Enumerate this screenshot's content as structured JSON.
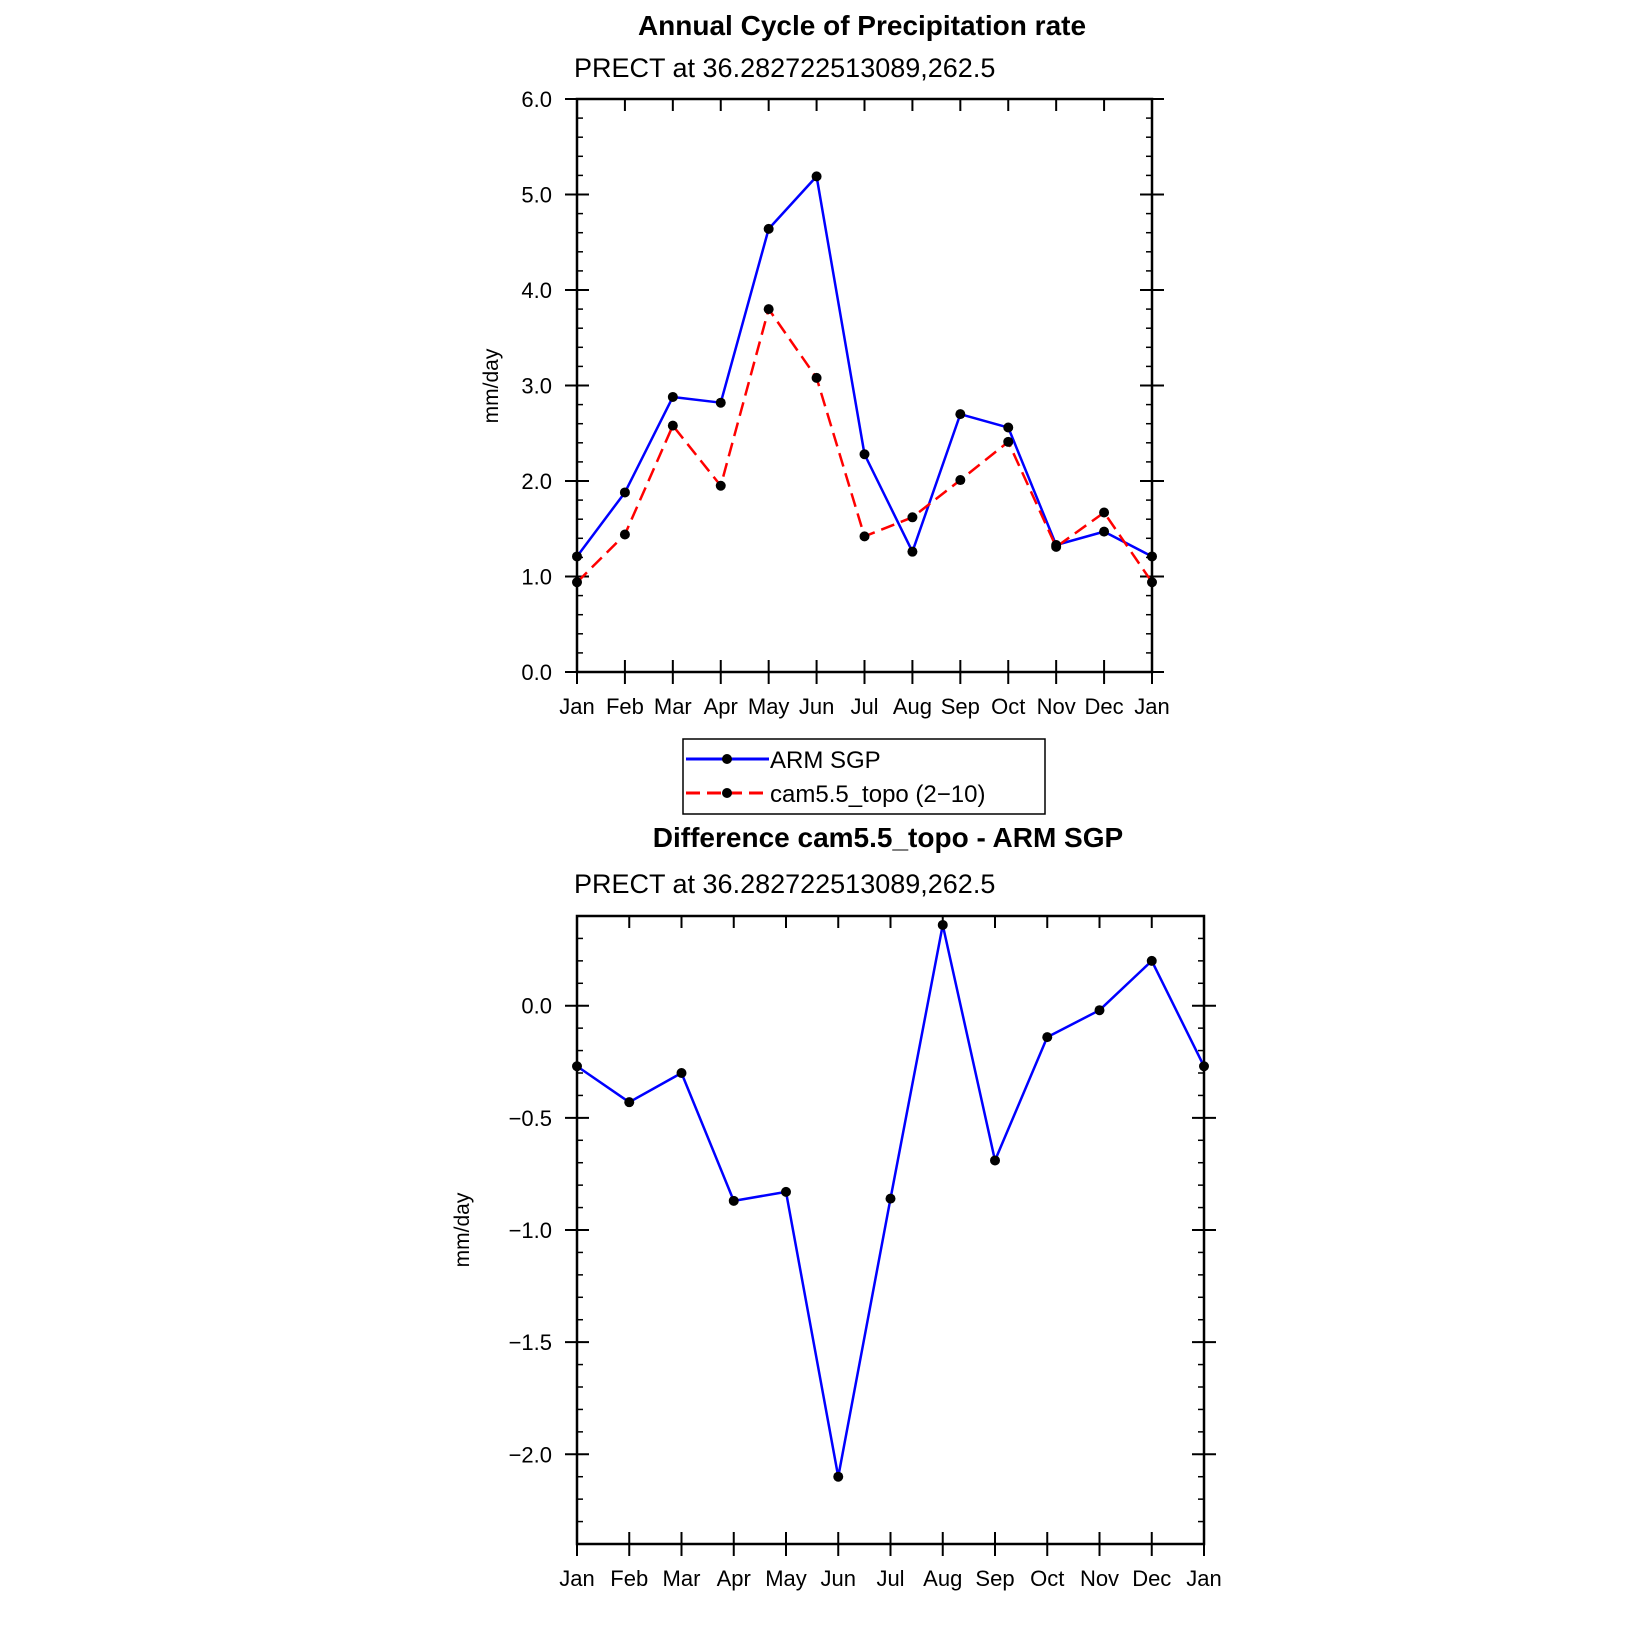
{
  "colors": {
    "blue_series": "#0000ff",
    "red_series": "#ff0000",
    "marker": "#000000",
    "axis": "#000000"
  },
  "chart_data": [
    {
      "type": "line",
      "title": "Annual Cycle of Precipitation rate",
      "subtitle": "PRECT at 36.282722513089,262.5",
      "xlabel": "",
      "ylabel": "mm/day",
      "categories": [
        "Jan",
        "Feb",
        "Mar",
        "Apr",
        "May",
        "Jun",
        "Jul",
        "Aug",
        "Sep",
        "Oct",
        "Nov",
        "Dec",
        "Jan"
      ],
      "ylim": [
        0.0,
        6.0
      ],
      "yticks": [
        "0.0",
        "1.0",
        "2.0",
        "3.0",
        "4.0",
        "5.0",
        "6.0"
      ],
      "ytick_values": [
        0,
        1,
        2,
        3,
        4,
        5,
        6
      ],
      "yminor_step": 0.2,
      "series": [
        {
          "name": "ARM SGP",
          "style": "solid",
          "color": "#0000ff",
          "values": [
            1.21,
            1.88,
            2.88,
            2.82,
            4.64,
            5.19,
            2.28,
            1.26,
            2.7,
            2.56,
            1.33,
            1.47,
            1.21
          ]
        },
        {
          "name": "cam5.5_topo (2−10)",
          "style": "dashed",
          "color": "#ff0000",
          "values": [
            0.94,
            1.44,
            2.58,
            1.95,
            3.8,
            3.08,
            1.42,
            1.62,
            2.01,
            2.41,
            1.31,
            1.67,
            0.94
          ]
        }
      ],
      "legend": "bottom"
    },
    {
      "type": "line",
      "title": "Difference cam5.5_topo - ARM SGP",
      "subtitle": "PRECT at 36.282722513089,262.5",
      "xlabel": "",
      "ylabel": "mm/day",
      "categories": [
        "Jan",
        "Feb",
        "Mar",
        "Apr",
        "May",
        "Jun",
        "Jul",
        "Aug",
        "Sep",
        "Oct",
        "Nov",
        "Dec",
        "Jan"
      ],
      "ylim": [
        -2.4,
        0.4
      ],
      "yticks": [
        "−2.0",
        "−1.5",
        "−1.0",
        "−0.5",
        "0.0"
      ],
      "ytick_values": [
        -2.0,
        -1.5,
        -1.0,
        -0.5,
        0.0
      ],
      "yminor_step": 0.1,
      "series": [
        {
          "color": "#0000ff",
          "style": "solid",
          "values": [
            -0.27,
            -0.43,
            -0.3,
            -0.87,
            -0.83,
            -2.1,
            -0.86,
            0.36,
            -0.69,
            -0.14,
            -0.02,
            0.2,
            -0.27
          ]
        }
      ]
    }
  ]
}
